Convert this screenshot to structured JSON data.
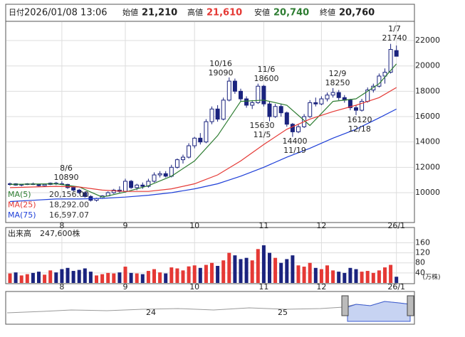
{
  "header": {
    "date_label": "日付",
    "date": "2026/01/08 13:06",
    "open_label": "始値",
    "open": "21,210",
    "high_label": "高値",
    "high": "21,610",
    "low_label": "安値",
    "low": "20,740",
    "close_label": "終値",
    "close": "20,760"
  },
  "chart_data": {
    "type": "candlestick",
    "categories": [
      null,
      null,
      null,
      null,
      null,
      null,
      null,
      null,
      null,
      "8",
      null,
      null,
      null,
      null,
      null,
      null,
      null,
      null,
      null,
      null,
      "9",
      null,
      null,
      null,
      null,
      null,
      null,
      null,
      null,
      null,
      null,
      null,
      "10",
      null,
      null,
      null,
      null,
      null,
      null,
      null,
      null,
      null,
      null,
      null,
      "11",
      null,
      null,
      null,
      null,
      null,
      null,
      null,
      null,
      null,
      "12",
      null,
      null,
      null,
      null,
      null,
      null,
      null,
      null,
      null,
      null,
      null,
      null,
      "26/1"
    ],
    "ohlc": [
      [
        10650,
        10800,
        10550,
        10700
      ],
      [
        10700,
        10750,
        10550,
        10600
      ],
      [
        10600,
        10700,
        10500,
        10650
      ],
      [
        10650,
        10750,
        10600,
        10700
      ],
      [
        10700,
        10800,
        10600,
        10650
      ],
      [
        10650,
        10700,
        10500,
        10550
      ],
      [
        10550,
        10700,
        10500,
        10650
      ],
      [
        10650,
        10800,
        10600,
        10750
      ],
      [
        10750,
        10850,
        10600,
        10700
      ],
      [
        10700,
        10890,
        10600,
        10650
      ],
      [
        10650,
        10700,
        10300,
        10400
      ],
      [
        10400,
        10500,
        10100,
        10200
      ],
      [
        10200,
        10300,
        9900,
        10000
      ],
      [
        10000,
        10100,
        9600,
        9700
      ],
      [
        9700,
        9800,
        9300,
        9400
      ],
      [
        9400,
        9600,
        9300,
        9550
      ],
      [
        9550,
        9800,
        9500,
        9750
      ],
      [
        9750,
        10100,
        9700,
        10000
      ],
      [
        10000,
        10300,
        9900,
        10200
      ],
      [
        10200,
        10500,
        10000,
        10100
      ],
      [
        10100,
        11100,
        10000,
        10900
      ],
      [
        10900,
        11000,
        10300,
        10400
      ],
      [
        10400,
        10700,
        10200,
        10600
      ],
      [
        10600,
        10800,
        10300,
        10500
      ],
      [
        10500,
        11100,
        10400,
        10900
      ],
      [
        10900,
        11600,
        10800,
        11400
      ],
      [
        11400,
        11700,
        11200,
        11500
      ],
      [
        11500,
        11700,
        11200,
        11300
      ],
      [
        11300,
        12200,
        11200,
        12000
      ],
      [
        12000,
        12700,
        11900,
        12600
      ],
      [
        12600,
        13000,
        12300,
        12800
      ],
      [
        12800,
        13900,
        12700,
        13700
      ],
      [
        13700,
        14400,
        13500,
        14300
      ],
      [
        14300,
        14700,
        13800,
        14000
      ],
      [
        14000,
        15800,
        13900,
        15600
      ],
      [
        15600,
        16800,
        15400,
        16600
      ],
      [
        16600,
        16900,
        15600,
        15800
      ],
      [
        15800,
        17500,
        15700,
        17300
      ],
      [
        17300,
        19090,
        17200,
        18800
      ],
      [
        18800,
        19000,
        17800,
        18000
      ],
      [
        18000,
        18200,
        17200,
        17400
      ],
      [
        17400,
        17600,
        16700,
        16900
      ],
      [
        16900,
        17300,
        16600,
        17100
      ],
      [
        17100,
        18600,
        17000,
        18400
      ],
      [
        18400,
        18500,
        16800,
        17000
      ],
      [
        17000,
        17200,
        15630,
        16000
      ],
      [
        16000,
        17000,
        15900,
        16800
      ],
      [
        16800,
        17000,
        16000,
        16300
      ],
      [
        16300,
        16400,
        15200,
        15400
      ],
      [
        15400,
        15500,
        14400,
        14800
      ],
      [
        14800,
        15400,
        14700,
        15200
      ],
      [
        15200,
        16200,
        15100,
        16000
      ],
      [
        16000,
        17300,
        15900,
        17100
      ],
      [
        17100,
        17500,
        16800,
        17000
      ],
      [
        17000,
        17600,
        16900,
        17400
      ],
      [
        17400,
        17900,
        17200,
        17700
      ],
      [
        17700,
        18250,
        17500,
        17900
      ],
      [
        17900,
        18100,
        17300,
        17500
      ],
      [
        17500,
        17700,
        17100,
        17300
      ],
      [
        17300,
        17400,
        16500,
        16700
      ],
      [
        16700,
        16900,
        16120,
        16500
      ],
      [
        16500,
        17400,
        16400,
        17200
      ],
      [
        17200,
        18300,
        17100,
        18100
      ],
      [
        18100,
        18600,
        17900,
        18400
      ],
      [
        18400,
        19400,
        18300,
        19200
      ],
      [
        19200,
        19800,
        18600,
        19500
      ],
      [
        19500,
        21740,
        19400,
        21300
      ],
      [
        21210,
        21610,
        20740,
        20760
      ]
    ],
    "up_color": "#ffffff",
    "down_color": "#1a237e",
    "ylim": [
      7700,
      23460
    ],
    "yticks": [
      10000,
      12000,
      14000,
      16000,
      18000,
      20000,
      22000
    ],
    "series": [
      {
        "name": "MA(5)",
        "legend_value": {
          "value": 20156,
          "label": "20,156.00"
        },
        "color": "#2e7d32",
        "x": [
          0,
          4,
          8,
          12,
          16,
          20,
          24,
          28,
          32,
          36,
          40,
          44,
          48,
          52,
          56,
          60,
          64,
          67
        ],
        "values": [
          10650,
          10680,
          10700,
          10450,
          9650,
          10050,
          10550,
          11300,
          12500,
          14500,
          17200,
          17300,
          16900,
          15300,
          17200,
          17400,
          18600,
          20156
        ]
      },
      {
        "name": "MA(25)",
        "legend_value": {
          "value": 18292,
          "label": "18,292.00"
        },
        "color": "#e53935",
        "x": [
          0,
          4,
          8,
          12,
          16,
          20,
          24,
          28,
          32,
          36,
          40,
          44,
          48,
          52,
          56,
          60,
          64,
          67
        ],
        "values": [
          10400,
          10450,
          10500,
          10450,
          10200,
          10100,
          10100,
          10300,
          10700,
          11400,
          12500,
          13800,
          15000,
          15800,
          16400,
          16900,
          17500,
          18292
        ]
      },
      {
        "name": "MA(75)",
        "legend_value": {
          "value": 16597.07,
          "label": "16,597.07"
        },
        "color": "#1e3fd8",
        "x": [
          0,
          4,
          8,
          12,
          16,
          20,
          24,
          28,
          32,
          36,
          40,
          44,
          48,
          52,
          56,
          60,
          64,
          67
        ],
        "values": [
          9300,
          9400,
          9500,
          9500,
          9550,
          9650,
          9800,
          10000,
          10300,
          10700,
          11300,
          12000,
          12800,
          13500,
          14300,
          15000,
          15900,
          16597.07
        ]
      }
    ],
    "annotations": [
      {
        "date": "8/6",
        "value": 10890
      },
      {
        "date": "10/16",
        "value": 19090
      },
      {
        "date": "11/6",
        "value": 18600
      },
      {
        "date": "11/5",
        "value": 15630
      },
      {
        "date": "12/9",
        "value": 18250
      },
      {
        "date": "11/19",
        "value": 14400
      },
      {
        "date": "12/18",
        "value": 16120
      },
      {
        "date": "1/7",
        "value": 21740
      }
    ],
    "volume": {
      "title": "出来高",
      "current": "247,600株",
      "unit": "(万株)",
      "ylim": [
        0,
        218
      ],
      "yticks": [
        40,
        80,
        120,
        160
      ],
      "values": [
        38,
        42,
        30,
        35,
        40,
        45,
        33,
        50,
        42,
        55,
        60,
        48,
        52,
        58,
        45,
        30,
        35,
        40,
        38,
        42,
        65,
        40,
        38,
        35,
        48,
        55,
        42,
        38,
        62,
        58,
        50,
        66,
        70,
        60,
        72,
        80,
        68,
        90,
        120,
        110,
        95,
        100,
        90,
        135,
        150,
        120,
        100,
        80,
        95,
        110,
        70,
        65,
        80,
        60,
        55,
        70,
        50,
        45,
        40,
        60,
        55,
        45,
        48,
        40,
        50,
        62,
        72,
        24.76
      ]
    },
    "navigator": {
      "labels": [
        "24",
        "25"
      ]
    }
  }
}
